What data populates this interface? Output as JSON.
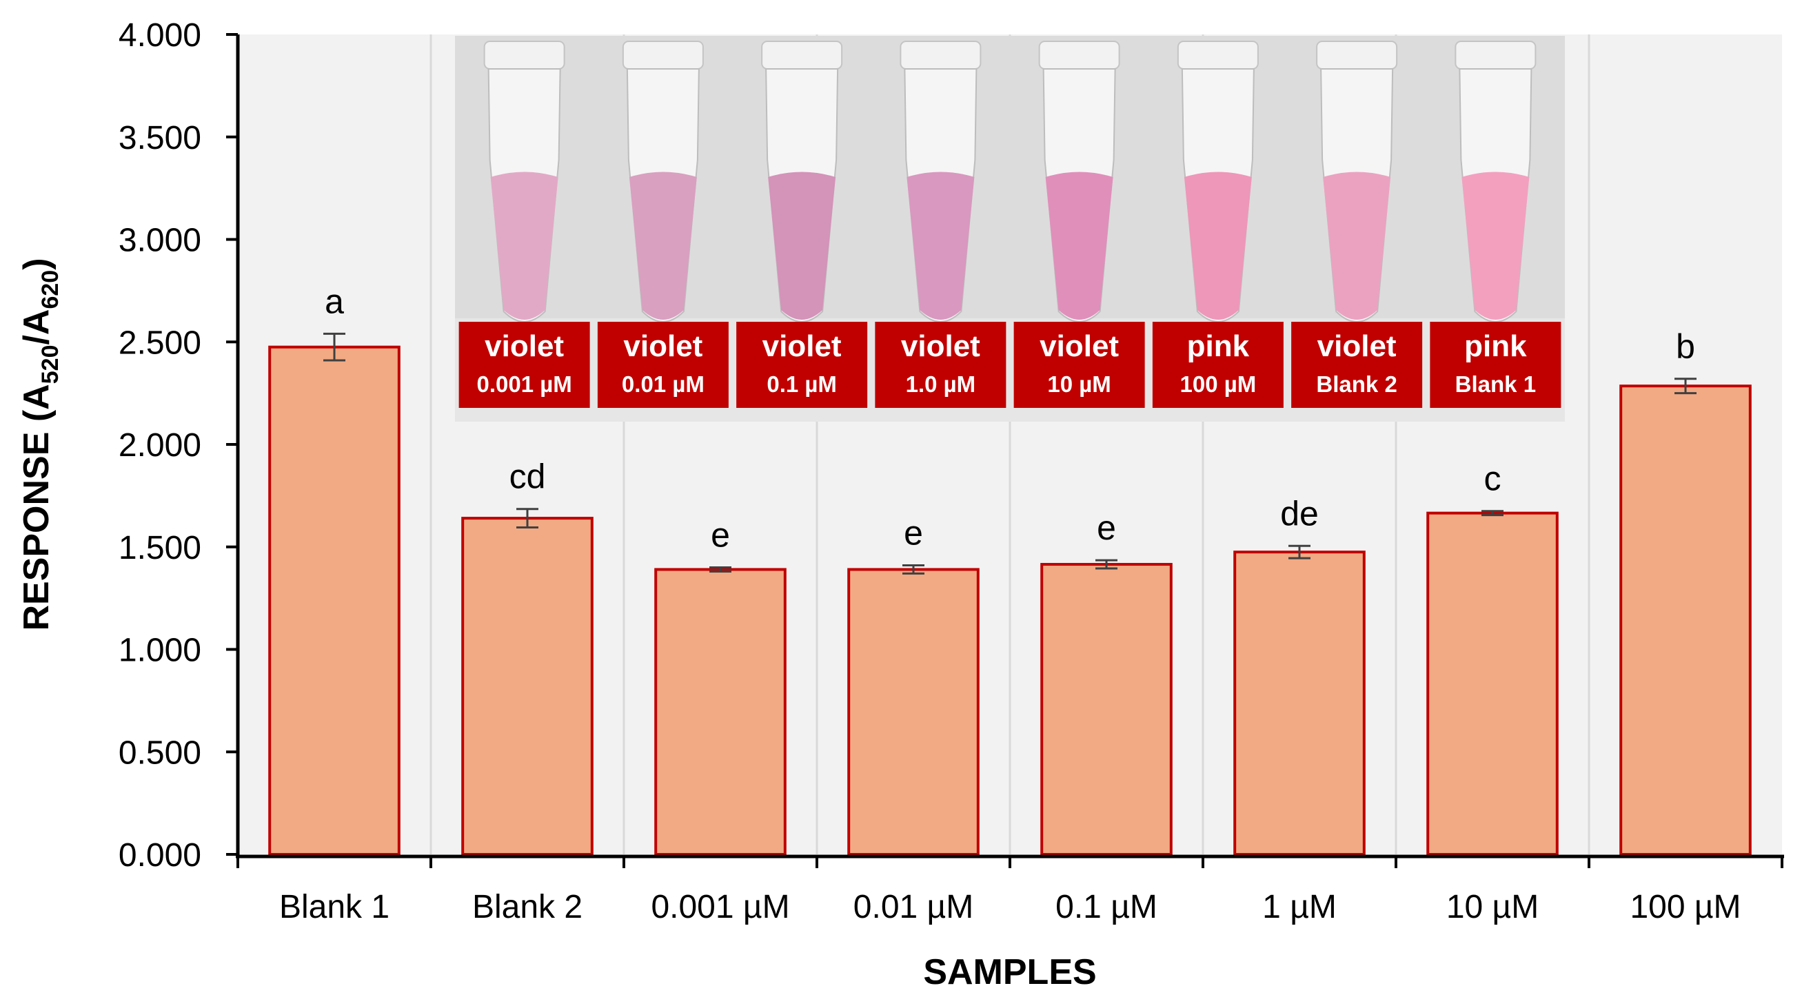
{
  "chart_data": {
    "type": "bar",
    "categories": [
      "Blank 1",
      "Blank 2",
      "0.001 µM",
      "0.01 µM",
      "0.1 µM",
      "1 µM",
      "10 µM",
      "100 µM"
    ],
    "values": [
      2.475,
      1.64,
      1.39,
      1.39,
      1.415,
      1.475,
      1.665,
      2.285
    ],
    "errors": [
      0.065,
      0.045,
      0.01,
      0.02,
      0.02,
      0.03,
      0.01,
      0.035
    ],
    "significance_letters": [
      "a",
      "cd",
      "e",
      "e",
      "e",
      "de",
      "c",
      "b"
    ],
    "xlabel": "SAMPLES",
    "ylabel": {
      "main": "RESPONSE (A",
      "sub1": "520",
      "mid": "/A",
      "sub2": "620",
      "end": ")"
    },
    "ylim": [
      0,
      4
    ],
    "yticks": [
      "0.000",
      "0.500",
      "1.000",
      "1.500",
      "2.000",
      "2.500",
      "3.000",
      "3.500",
      "4.000"
    ],
    "grid": "vertical-between-categories",
    "colors": {
      "bar_fill": "#f2aa84",
      "bar_edge": "#c00000",
      "grid": "#d9d9d9",
      "label_box": "#c00000"
    }
  },
  "inset_photo": {
    "tubes": [
      {
        "color": "violet",
        "concentration": "0.001 µM",
        "liquid": "#e2a9c6"
      },
      {
        "color": "violet",
        "concentration": "0.01 µM",
        "liquid": "#d9a0c0"
      },
      {
        "color": "violet",
        "concentration": "0.1 µM",
        "liquid": "#d493b9"
      },
      {
        "color": "violet",
        "concentration": "1.0 µM",
        "liquid": "#d998bf"
      },
      {
        "color": "violet",
        "concentration": "10 µM",
        "liquid": "#e08fbb"
      },
      {
        "color": "pink",
        "concentration": "100 µM",
        "liquid": "#ee97b8"
      },
      {
        "color": "violet",
        "concentration": "Blank 2",
        "liquid": "#eba2c0"
      },
      {
        "color": "pink",
        "concentration": "Blank 1",
        "liquid": "#f3a0bf"
      }
    ]
  }
}
